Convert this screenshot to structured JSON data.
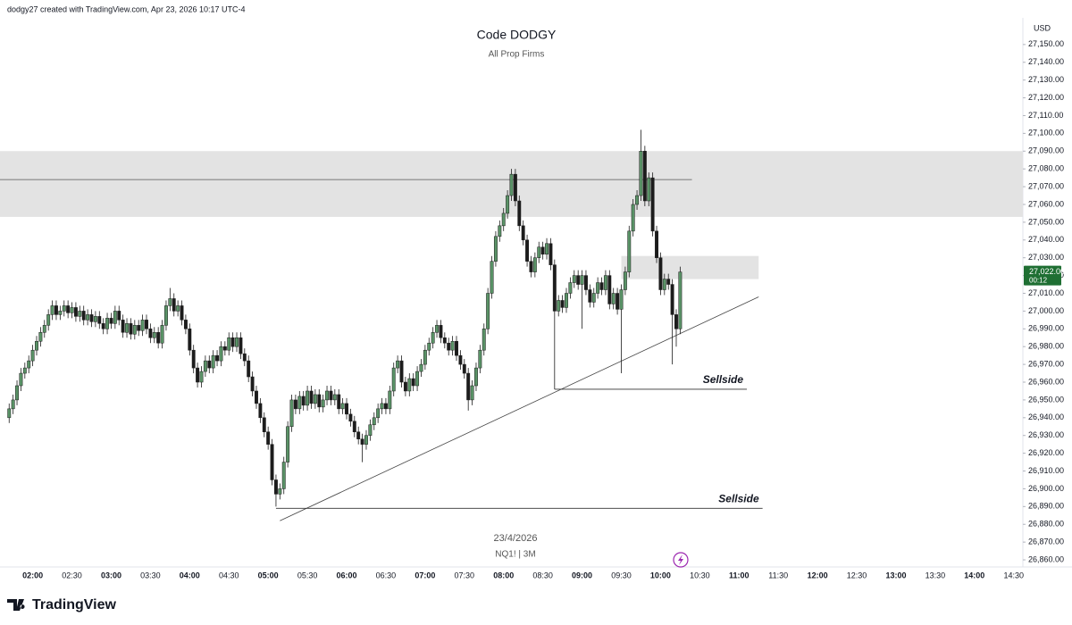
{
  "header": "dodgy27 created with TradingView.com, Apr 23, 2026 10:17 UTC-4",
  "brand": "TradingView",
  "chart_data": {
    "type": "candlestick",
    "title": "Code DODGY",
    "subtitle": "All Prop Firms",
    "date_label": "23/4/2026",
    "symbol_label": "NQ1! | 3M",
    "currency": "USD",
    "up_color": "#5a9367",
    "down_color": "#1c1c1c",
    "grid": false,
    "xlim": [
      "01:35",
      "14:37"
    ],
    "xticks": [
      "02:00",
      "02:30",
      "03:00",
      "03:30",
      "04:00",
      "04:30",
      "05:00",
      "05:30",
      "06:00",
      "06:30",
      "07:00",
      "07:30",
      "08:00",
      "08:30",
      "09:00",
      "09:30",
      "10:00",
      "10:30",
      "11:00",
      "11:30",
      "12:00",
      "12:30",
      "13:00",
      "13:30",
      "14:00",
      "14:30"
    ],
    "ylim": [
      26856,
      27165
    ],
    "yticks": [
      {
        "value": 26860,
        "label": "26,860.00"
      },
      {
        "value": 26870,
        "label": "26,870.00"
      },
      {
        "value": 26880,
        "label": "26,880.00"
      },
      {
        "value": 26890,
        "label": "26,890.00"
      },
      {
        "value": 26900,
        "label": "26,900.00"
      },
      {
        "value": 26910,
        "label": "26,910.00"
      },
      {
        "value": 26920,
        "label": "26,920.00"
      },
      {
        "value": 26930,
        "label": "26,930.00"
      },
      {
        "value": 26940,
        "label": "26,940.00"
      },
      {
        "value": 26950,
        "label": "26,950.00"
      },
      {
        "value": 26960,
        "label": "26,960.00"
      },
      {
        "value": 26970,
        "label": "26,970.00"
      },
      {
        "value": 26980,
        "label": "26,980.00"
      },
      {
        "value": 26990,
        "label": "26,990.00"
      },
      {
        "value": 27000,
        "label": "27,000.00"
      },
      {
        "value": 27010,
        "label": "27,010.00"
      },
      {
        "value": 27020,
        "label": "27,020.00"
      },
      {
        "value": 27030,
        "label": "27,030.00"
      },
      {
        "value": 27040,
        "label": "27,040.00"
      },
      {
        "value": 27050,
        "label": "27,050.00"
      },
      {
        "value": 27060,
        "label": "27,060.00"
      },
      {
        "value": 27070,
        "label": "27,070.00"
      },
      {
        "value": 27080,
        "label": "27,080.00"
      },
      {
        "value": 27090,
        "label": "27,090.00"
      },
      {
        "value": 27100,
        "label": "27,100.00"
      },
      {
        "value": 27110,
        "label": "27,110.00"
      },
      {
        "value": 27120,
        "label": "27,120.00"
      },
      {
        "value": 27130,
        "label": "27,130.00"
      },
      {
        "value": 27140,
        "label": "27,140.00"
      },
      {
        "value": 27150,
        "label": "27,150.00"
      }
    ],
    "last_price": {
      "label": "27,022.00",
      "countdown": "00:12"
    },
    "x": [
      "01:42",
      "01:45",
      "01:48",
      "01:51",
      "01:54",
      "01:57",
      "02:00",
      "02:03",
      "02:06",
      "02:09",
      "02:12",
      "02:15",
      "02:18",
      "02:21",
      "02:24",
      "02:27",
      "02:30",
      "02:33",
      "02:36",
      "02:39",
      "02:42",
      "02:45",
      "02:48",
      "02:51",
      "02:54",
      "02:57",
      "03:00",
      "03:03",
      "03:06",
      "03:09",
      "03:12",
      "03:15",
      "03:18",
      "03:21",
      "03:24",
      "03:27",
      "03:30",
      "03:33",
      "03:36",
      "03:39",
      "03:42",
      "03:45",
      "03:48",
      "03:51",
      "03:54",
      "03:57",
      "04:00",
      "04:03",
      "04:06",
      "04:09",
      "04:12",
      "04:15",
      "04:18",
      "04:21",
      "04:24",
      "04:27",
      "04:30",
      "04:33",
      "04:36",
      "04:39",
      "04:42",
      "04:45",
      "04:48",
      "04:51",
      "04:54",
      "04:57",
      "05:00",
      "05:03",
      "05:06",
      "05:09",
      "05:12",
      "05:15",
      "05:18",
      "05:21",
      "05:24",
      "05:27",
      "05:30",
      "05:33",
      "05:36",
      "05:39",
      "05:42",
      "05:45",
      "05:48",
      "05:51",
      "05:54",
      "05:57",
      "06:00",
      "06:03",
      "06:06",
      "06:09",
      "06:12",
      "06:15",
      "06:18",
      "06:21",
      "06:24",
      "06:27",
      "06:30",
      "06:33",
      "06:36",
      "06:39",
      "06:42",
      "06:45",
      "06:48",
      "06:51",
      "06:54",
      "06:57",
      "07:00",
      "07:03",
      "07:06",
      "07:09",
      "07:12",
      "07:15",
      "07:18",
      "07:21",
      "07:24",
      "07:27",
      "07:30",
      "07:33",
      "07:36",
      "07:39",
      "07:42",
      "07:45",
      "07:48",
      "07:51",
      "07:54",
      "07:57",
      "08:00",
      "08:03",
      "08:06",
      "08:09",
      "08:12",
      "08:15",
      "08:18",
      "08:21",
      "08:24",
      "08:27",
      "08:30",
      "08:33",
      "08:36",
      "08:39",
      "08:42",
      "08:45",
      "08:48",
      "08:51",
      "08:54",
      "08:57",
      "09:00",
      "09:03",
      "09:06",
      "09:09",
      "09:12",
      "09:15",
      "09:18",
      "09:21",
      "09:24",
      "09:27",
      "09:30",
      "09:33",
      "09:36",
      "09:39",
      "09:42",
      "09:45",
      "09:48",
      "09:51",
      "09:54",
      "09:57",
      "10:00",
      "10:03",
      "10:06",
      "10:09",
      "10:12",
      "10:15"
    ],
    "ohlc": [
      [
        26940,
        26948,
        26937,
        26945
      ],
      [
        26945,
        26953,
        26942,
        26950
      ],
      [
        26950,
        26961,
        26947,
        26958
      ],
      [
        26958,
        26968,
        26955,
        26965
      ],
      [
        26965,
        26971,
        26962,
        26968
      ],
      [
        26968,
        26975,
        26965,
        26972
      ],
      [
        26972,
        26981,
        26969,
        26978
      ],
      [
        26978,
        26986,
        26975,
        26983
      ],
      [
        26983,
        26991,
        26980,
        26988
      ],
      [
        26988,
        26995,
        26985,
        26992
      ],
      [
        26992,
        27001,
        26989,
        26998
      ],
      [
        26998,
        27006,
        26995,
        27003
      ],
      [
        27003,
        27006,
        26995,
        26998
      ],
      [
        26998,
        27003,
        26995,
        27000
      ],
      [
        27000,
        27006,
        26997,
        27003
      ],
      [
        27003,
        27006,
        26996,
        26999
      ],
      [
        26999,
        27005,
        26996,
        27002
      ],
      [
        27002,
        27005,
        26994,
        26997
      ],
      [
        26997,
        27003,
        26994,
        27000
      ],
      [
        27000,
        27003,
        26992,
        26995
      ],
      [
        26995,
        27001,
        26992,
        26998
      ],
      [
        26998,
        27001,
        26991,
        26994
      ],
      [
        26994,
        27000,
        26991,
        26997
      ],
      [
        26997,
        27000,
        26990,
        26993
      ],
      [
        26993,
        26996,
        26987,
        26990
      ],
      [
        26990,
        26999,
        26987,
        26996
      ],
      [
        26996,
        26999,
        26990,
        26993
      ],
      [
        26993,
        27003,
        26990,
        27000
      ],
      [
        27000,
        27003,
        26992,
        26995
      ],
      [
        26995,
        26998,
        26985,
        26988
      ],
      [
        26988,
        26996,
        26985,
        26993
      ],
      [
        26993,
        26996,
        26984,
        26987
      ],
      [
        26987,
        26995,
        26984,
        26992
      ],
      [
        26992,
        26995,
        26986,
        26989
      ],
      [
        26989,
        26998,
        26986,
        26995
      ],
      [
        26995,
        26998,
        26987,
        26990
      ],
      [
        26990,
        26993,
        26982,
        26985
      ],
      [
        26985,
        26991,
        26982,
        26988
      ],
      [
        26988,
        26991,
        26979,
        26982
      ],
      [
        26982,
        26995,
        26979,
        26992
      ],
      [
        26992,
        27006,
        26989,
        27003
      ],
      [
        27003,
        27013,
        27000,
        27007
      ],
      [
        27007,
        27010,
        26997,
        27000
      ],
      [
        27000,
        27006,
        26997,
        27003
      ],
      [
        27003,
        27006,
        26992,
        26995
      ],
      [
        26995,
        26998,
        26987,
        26990
      ],
      [
        26990,
        26993,
        26975,
        26978
      ],
      [
        26978,
        26981,
        26965,
        26968
      ],
      [
        26968,
        26971,
        26957,
        26960
      ],
      [
        26960,
        26969,
        26957,
        26966
      ],
      [
        26966,
        26975,
        26963,
        26972
      ],
      [
        26972,
        26975,
        26965,
        26968
      ],
      [
        26968,
        26978,
        26965,
        26975
      ],
      [
        26975,
        26978,
        26969,
        26972
      ],
      [
        26972,
        26983,
        26969,
        26980
      ],
      [
        26980,
        26983,
        26975,
        26978
      ],
      [
        26978,
        26988,
        26975,
        26985
      ],
      [
        26985,
        26988,
        26977,
        26980
      ],
      [
        26980,
        26988,
        26977,
        26985
      ],
      [
        26985,
        26988,
        26973,
        26976
      ],
      [
        26976,
        26979,
        26969,
        26972
      ],
      [
        26972,
        26975,
        26960,
        26963
      ],
      [
        26963,
        26966,
        26952,
        26955
      ],
      [
        26955,
        26958,
        26945,
        26948
      ],
      [
        26948,
        26951,
        26937,
        26940
      ],
      [
        26940,
        26943,
        26929,
        26932
      ],
      [
        26932,
        26935,
        26922,
        26925
      ],
      [
        26925,
        26928,
        26902,
        26905
      ],
      [
        26905,
        26908,
        26890,
        26897
      ],
      [
        26897,
        26903,
        26894,
        26900
      ],
      [
        26900,
        26918,
        26897,
        26915
      ],
      [
        26915,
        26938,
        26912,
        26935
      ],
      [
        26935,
        26953,
        26932,
        26950
      ],
      [
        26950,
        26953,
        26942,
        26945
      ],
      [
        26945,
        26955,
        26942,
        26952
      ],
      [
        26952,
        26955,
        26944,
        26947
      ],
      [
        26947,
        26958,
        26944,
        26955
      ],
      [
        26955,
        26958,
        26945,
        26948
      ],
      [
        26948,
        26956,
        26945,
        26953
      ],
      [
        26953,
        26956,
        26943,
        26946
      ],
      [
        26946,
        26953,
        26943,
        26950
      ],
      [
        26950,
        26958,
        26947,
        26955
      ],
      [
        26955,
        26958,
        26947,
        26950
      ],
      [
        26950,
        26956,
        26947,
        26953
      ],
      [
        26953,
        26956,
        26942,
        26945
      ],
      [
        26945,
        26951,
        26942,
        26948
      ],
      [
        26948,
        26951,
        26939,
        26942
      ],
      [
        26942,
        26945,
        26935,
        26938
      ],
      [
        26938,
        26941,
        26929,
        26932
      ],
      [
        26932,
        26935,
        26925,
        26928
      ],
      [
        26928,
        26931,
        26915,
        26925
      ],
      [
        26925,
        26933,
        26922,
        26930
      ],
      [
        26930,
        26939,
        26927,
        26936
      ],
      [
        26936,
        26943,
        26933,
        26940
      ],
      [
        26940,
        26948,
        26937,
        26945
      ],
      [
        26945,
        26951,
        26942,
        26948
      ],
      [
        26948,
        26951,
        26942,
        26945
      ],
      [
        26945,
        26958,
        26942,
        26955
      ],
      [
        26955,
        26971,
        26952,
        26968
      ],
      [
        26968,
        26975,
        26965,
        26972
      ],
      [
        26972,
        26975,
        26957,
        26960
      ],
      [
        26960,
        26963,
        26952,
        26955
      ],
      [
        26955,
        26965,
        26952,
        26962
      ],
      [
        26962,
        26965,
        26955,
        26958
      ],
      [
        26958,
        26969,
        26955,
        26966
      ],
      [
        26966,
        26973,
        26963,
        26970
      ],
      [
        26970,
        26981,
        26967,
        26978
      ],
      [
        26978,
        26985,
        26975,
        26982
      ],
      [
        26982,
        26991,
        26979,
        26988
      ],
      [
        26988,
        26995,
        26985,
        26992
      ],
      [
        26992,
        26995,
        26982,
        26985
      ],
      [
        26985,
        26988,
        26979,
        26982
      ],
      [
        26982,
        26985,
        26975,
        26978
      ],
      [
        26978,
        26986,
        26975,
        26983
      ],
      [
        26983,
        26986,
        26972,
        26975
      ],
      [
        26975,
        26978,
        26967,
        26970
      ],
      [
        26970,
        26973,
        26962,
        26965
      ],
      [
        26965,
        26968,
        26944,
        26950
      ],
      [
        26950,
        26961,
        26947,
        26958
      ],
      [
        26958,
        26971,
        26955,
        26968
      ],
      [
        26968,
        26981,
        26965,
        26978
      ],
      [
        26978,
        26993,
        26975,
        26990
      ],
      [
        26990,
        27013,
        26987,
        27010
      ],
      [
        27010,
        27031,
        27007,
        27028
      ],
      [
        27028,
        27045,
        27025,
        27042
      ],
      [
        27042,
        27051,
        27039,
        27048
      ],
      [
        27048,
        27058,
        27045,
        27055
      ],
      [
        27055,
        27068,
        27052,
        27065
      ],
      [
        27065,
        27080,
        27062,
        27077
      ],
      [
        27077,
        27080,
        27059,
        27062
      ],
      [
        27062,
        27065,
        27045,
        27048
      ],
      [
        27048,
        27051,
        27037,
        27040
      ],
      [
        27040,
        27043,
        27025,
        27028
      ],
      [
        27028,
        27031,
        27019,
        27022
      ],
      [
        27022,
        27033,
        27019,
        27030
      ],
      [
        27030,
        27039,
        27027,
        27036
      ],
      [
        27036,
        27039,
        27029,
        27032
      ],
      [
        27032,
        27041,
        27029,
        27038
      ],
      [
        27038,
        27041,
        27023,
        27026
      ],
      [
        27026,
        27029,
        26956,
        27000
      ],
      [
        27000,
        27009,
        26997,
        27006
      ],
      [
        27006,
        27009,
        26999,
        27002
      ],
      [
        27002,
        27013,
        26999,
        27010
      ],
      [
        27010,
        27019,
        27007,
        27016
      ],
      [
        27016,
        27023,
        27013,
        27020
      ],
      [
        27020,
        27023,
        27012,
        27015
      ],
      [
        27015,
        27023,
        26990,
        27020
      ],
      [
        27020,
        27023,
        27009,
        27012
      ],
      [
        27012,
        27015,
        27002,
        27005
      ],
      [
        27005,
        27013,
        27002,
        27010
      ],
      [
        27010,
        27019,
        27007,
        27016
      ],
      [
        27016,
        27019,
        27009,
        27012
      ],
      [
        27012,
        27023,
        27009,
        27020
      ],
      [
        27020,
        27023,
        27001,
        27004
      ],
      [
        27004,
        27013,
        27001,
        27010
      ],
      [
        27010,
        27013,
        26998,
        27001
      ],
      [
        27001,
        27015,
        26965,
        27012
      ],
      [
        27012,
        27025,
        27009,
        27022
      ],
      [
        27022,
        27048,
        27019,
        27045
      ],
      [
        27045,
        27063,
        27042,
        27060
      ],
      [
        27060,
        27068,
        27057,
        27065
      ],
      [
        27065,
        27102,
        27062,
        27090
      ],
      [
        27090,
        27093,
        27059,
        27062
      ],
      [
        27062,
        27078,
        27059,
        27075
      ],
      [
        27075,
        27078,
        27042,
        27045
      ],
      [
        27045,
        27048,
        27027,
        27030
      ],
      [
        27030,
        27033,
        27009,
        27012
      ],
      [
        27012,
        27021,
        27009,
        27018
      ],
      [
        27018,
        27021,
        27012,
        27015
      ],
      [
        27015,
        27018,
        26970,
        26998
      ],
      [
        26998,
        27001,
        26980,
        26990
      ],
      [
        26990,
        27025,
        26987,
        27022
      ]
    ],
    "zones": [
      {
        "from": "01:35",
        "to": "14:37",
        "low": 27053,
        "high": 27090
      },
      {
        "from": "09:30",
        "to": "11:15",
        "low": 27018,
        "high": 27031
      }
    ],
    "hlines": [
      {
        "from": "01:35",
        "to": "10:24",
        "price": 27074
      }
    ],
    "levels": [
      {
        "label": "Sellside",
        "from": "08:39",
        "to": "11:06",
        "price": 26956
      },
      {
        "label": "Sellside",
        "from": "05:06",
        "to": "11:18",
        "price": 26889
      }
    ],
    "trendline": {
      "from": [
        "05:09",
        26882
      ],
      "to": [
        "11:15",
        27008
      ]
    }
  }
}
